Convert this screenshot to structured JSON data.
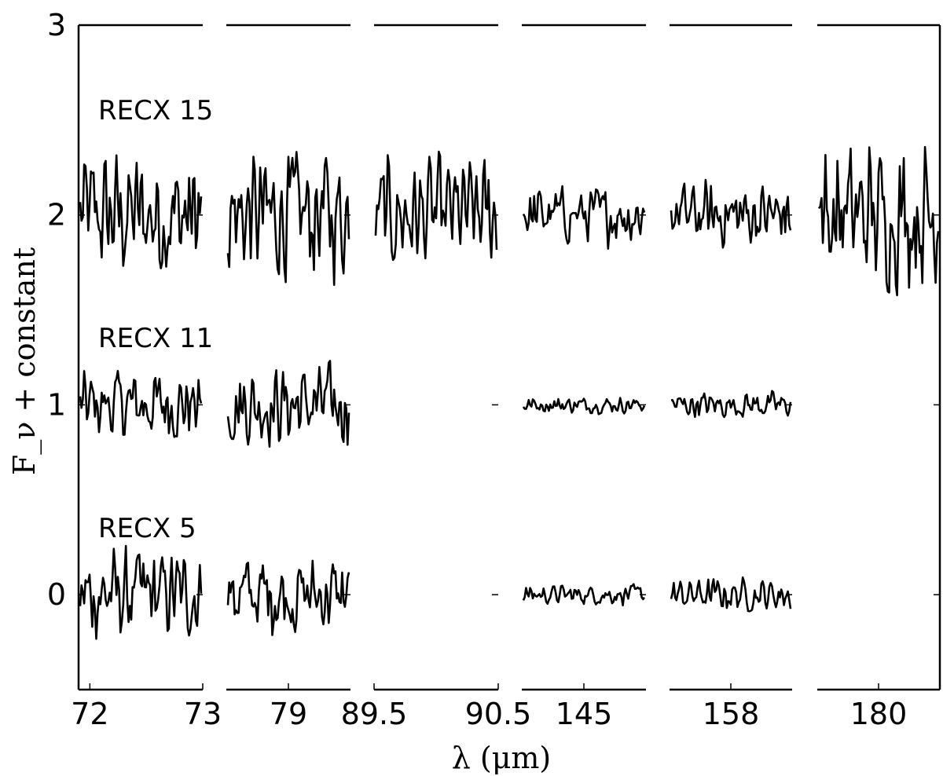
{
  "chart_data": {
    "type": "line",
    "xlabel": "λ (μm)",
    "ylabel": "F_ν + constant",
    "ylim": [
      -0.5,
      3
    ],
    "yticks": [
      "0",
      "1",
      "2",
      "3"
    ],
    "panels": [
      {
        "xlim": [
          71.9,
          73.0
        ],
        "ticks": [
          {
            "v": 72,
            "label": "72"
          },
          {
            "v": 73,
            "label": "73"
          }
        ]
      },
      {
        "xlim": [
          78.7,
          79.3
        ],
        "ticks": [
          {
            "v": 79,
            "label": "79"
          }
        ]
      },
      {
        "xlim": [
          89.5,
          90.5
        ],
        "ticks": [
          {
            "v": 89.5,
            "label": "89.5"
          },
          {
            "v": 90.5,
            "label": "90.5"
          }
        ]
      },
      {
        "xlim": [
          144.5,
          145.5
        ],
        "ticks": [
          {
            "v": 145,
            "label": "145"
          }
        ]
      },
      {
        "xlim": [
          157.5,
          158.5
        ],
        "ticks": [
          {
            "v": 158,
            "label": "158"
          }
        ]
      },
      {
        "xlim": [
          179.5,
          180.5
        ],
        "ticks": [
          {
            "v": 180,
            "label": "180"
          }
        ]
      }
    ],
    "series": [
      {
        "name": "RECX 15",
        "offset": 2,
        "amplitude": [
          0.4,
          0.4,
          0.35,
          0.18,
          0.2,
          0.45
        ],
        "present_in_panels": [
          0,
          1,
          2,
          3,
          4,
          5
        ]
      },
      {
        "name": "RECX 11",
        "offset": 1,
        "amplitude": [
          0.22,
          0.25,
          0,
          0.05,
          0.08,
          0
        ],
        "present_in_panels": [
          0,
          1,
          3,
          4
        ]
      },
      {
        "name": "RECX 5",
        "offset": 0,
        "amplitude": [
          0.28,
          0.25,
          0,
          0.06,
          0.1,
          0
        ],
        "present_in_panels": [
          0,
          1,
          3,
          4
        ]
      }
    ]
  }
}
